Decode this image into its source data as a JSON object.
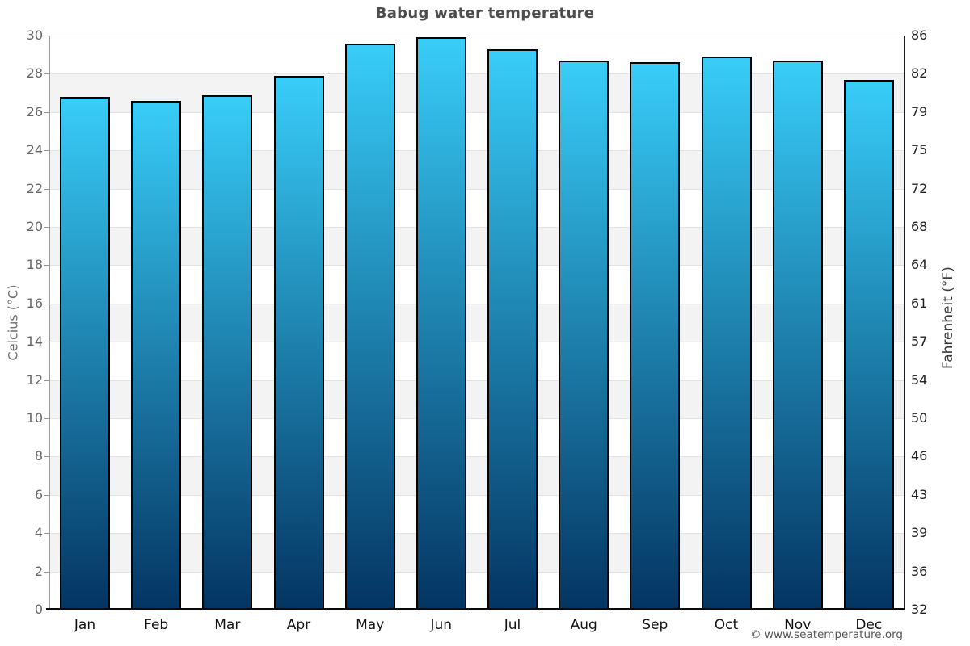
{
  "title": "Babug water temperature",
  "footer": {
    "copyright": "© www.seatemperature.org"
  },
  "chart_data": {
    "type": "bar",
    "title": "Babug water temperature",
    "categories": [
      "Jan",
      "Feb",
      "Mar",
      "Apr",
      "May",
      "Jun",
      "Jul",
      "Aug",
      "Sep",
      "Oct",
      "Nov",
      "Dec"
    ],
    "series": [
      {
        "name": "Water temperature (°C)",
        "values": [
          26.8,
          26.6,
          26.9,
          27.9,
          29.6,
          29.9,
          29.3,
          28.7,
          28.6,
          28.9,
          28.7,
          27.7
        ]
      }
    ],
    "ylabel_left": "Celcius (°C)",
    "ylabel_right": "Fahrenheit (°F)",
    "ylim": [
      0,
      30
    ],
    "yticks_celsius": [
      0,
      2,
      4,
      6,
      8,
      10,
      12,
      14,
      16,
      18,
      20,
      22,
      24,
      26,
      28,
      30
    ],
    "yticks_fahrenheit": [
      "32",
      "36",
      "39",
      "43",
      "46",
      "50",
      "54",
      "57",
      "61",
      "64",
      "68",
      "72",
      "75",
      "79",
      "82",
      "86"
    ],
    "grid": "horizontal gridlines every 2°C with alternating shaded bands",
    "legend": "none",
    "colors": {
      "bar_gradient_top": "#38cdf8",
      "bar_gradient_bottom": "#043462",
      "bar_border": "#040404",
      "band_shade": "#f3f3f3",
      "gridline": "#e2e2e2",
      "title_text": "#4d4d4d",
      "left_tick_text": "#666666",
      "right_tick_text": "#222222",
      "month_text": "#111111"
    }
  }
}
